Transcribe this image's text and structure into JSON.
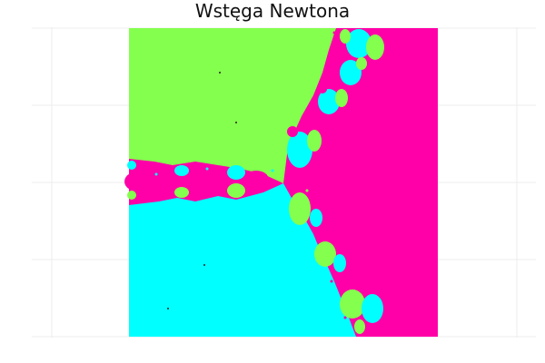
{
  "title": "Wstęga Newtona",
  "colors": {
    "root_green": "#84FF4E",
    "root_cyan": "#00FFFF",
    "root_magenta": "#FF00A8",
    "grid": "#E6E6E6",
    "background": "#FFFFFF"
  }
}
